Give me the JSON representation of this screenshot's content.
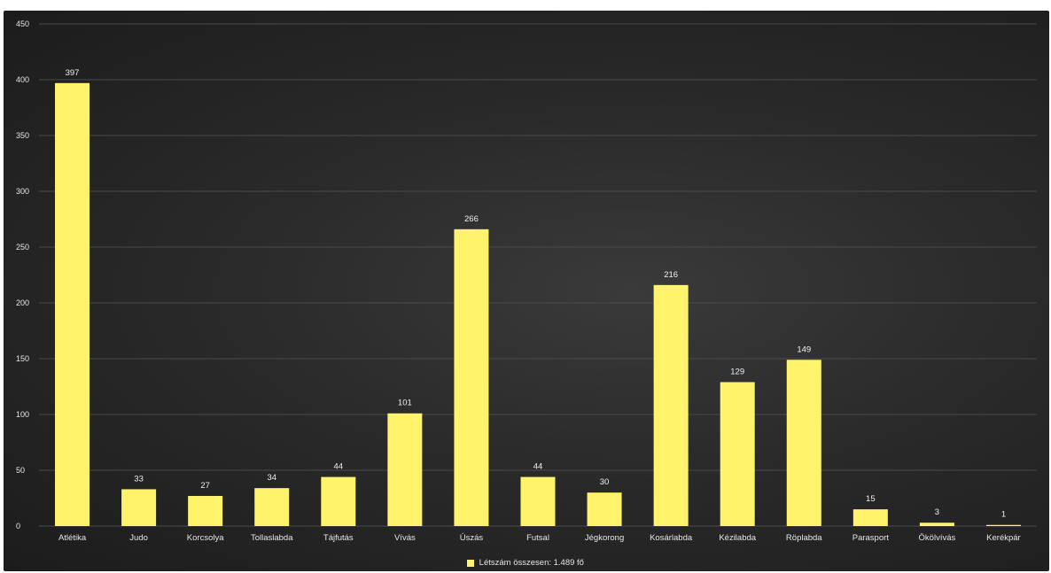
{
  "chart_data": {
    "type": "bar",
    "categories": [
      "Atlétika",
      "Judo",
      "Korcsolya",
      "Tollaslabda",
      "Tájfutás",
      "Vívás",
      "Úszás",
      "Futsal",
      "Jégkorong",
      "Kosárlabda",
      "Kézilabda",
      "Röplabda",
      "Parasport",
      "Ökölvívás",
      "Kerékpár"
    ],
    "series": [
      {
        "name": "Létszám összesen: 1.489 fő",
        "values": [
          397,
          33,
          27,
          34,
          44,
          101,
          266,
          44,
          30,
          216,
          129,
          149,
          15,
          3,
          1
        ]
      }
    ],
    "data_labels": [
      "397",
      "33",
      "27",
      "34",
      "44",
      "101",
      "266",
      "44",
      "30",
      "216",
      "129",
      "149",
      "15",
      "3",
      "1"
    ],
    "ylim": [
      0,
      450
    ],
    "y_ticks": [
      "0",
      "50",
      "100",
      "150",
      "200",
      "250",
      "300",
      "350",
      "400",
      "450"
    ],
    "grid": true,
    "legend_position": "bottom",
    "colors": {
      "bar": "#fff36b",
      "background": "#2b2b2b",
      "text": "#e6e6e6",
      "grid": "#4a4a4a"
    }
  }
}
